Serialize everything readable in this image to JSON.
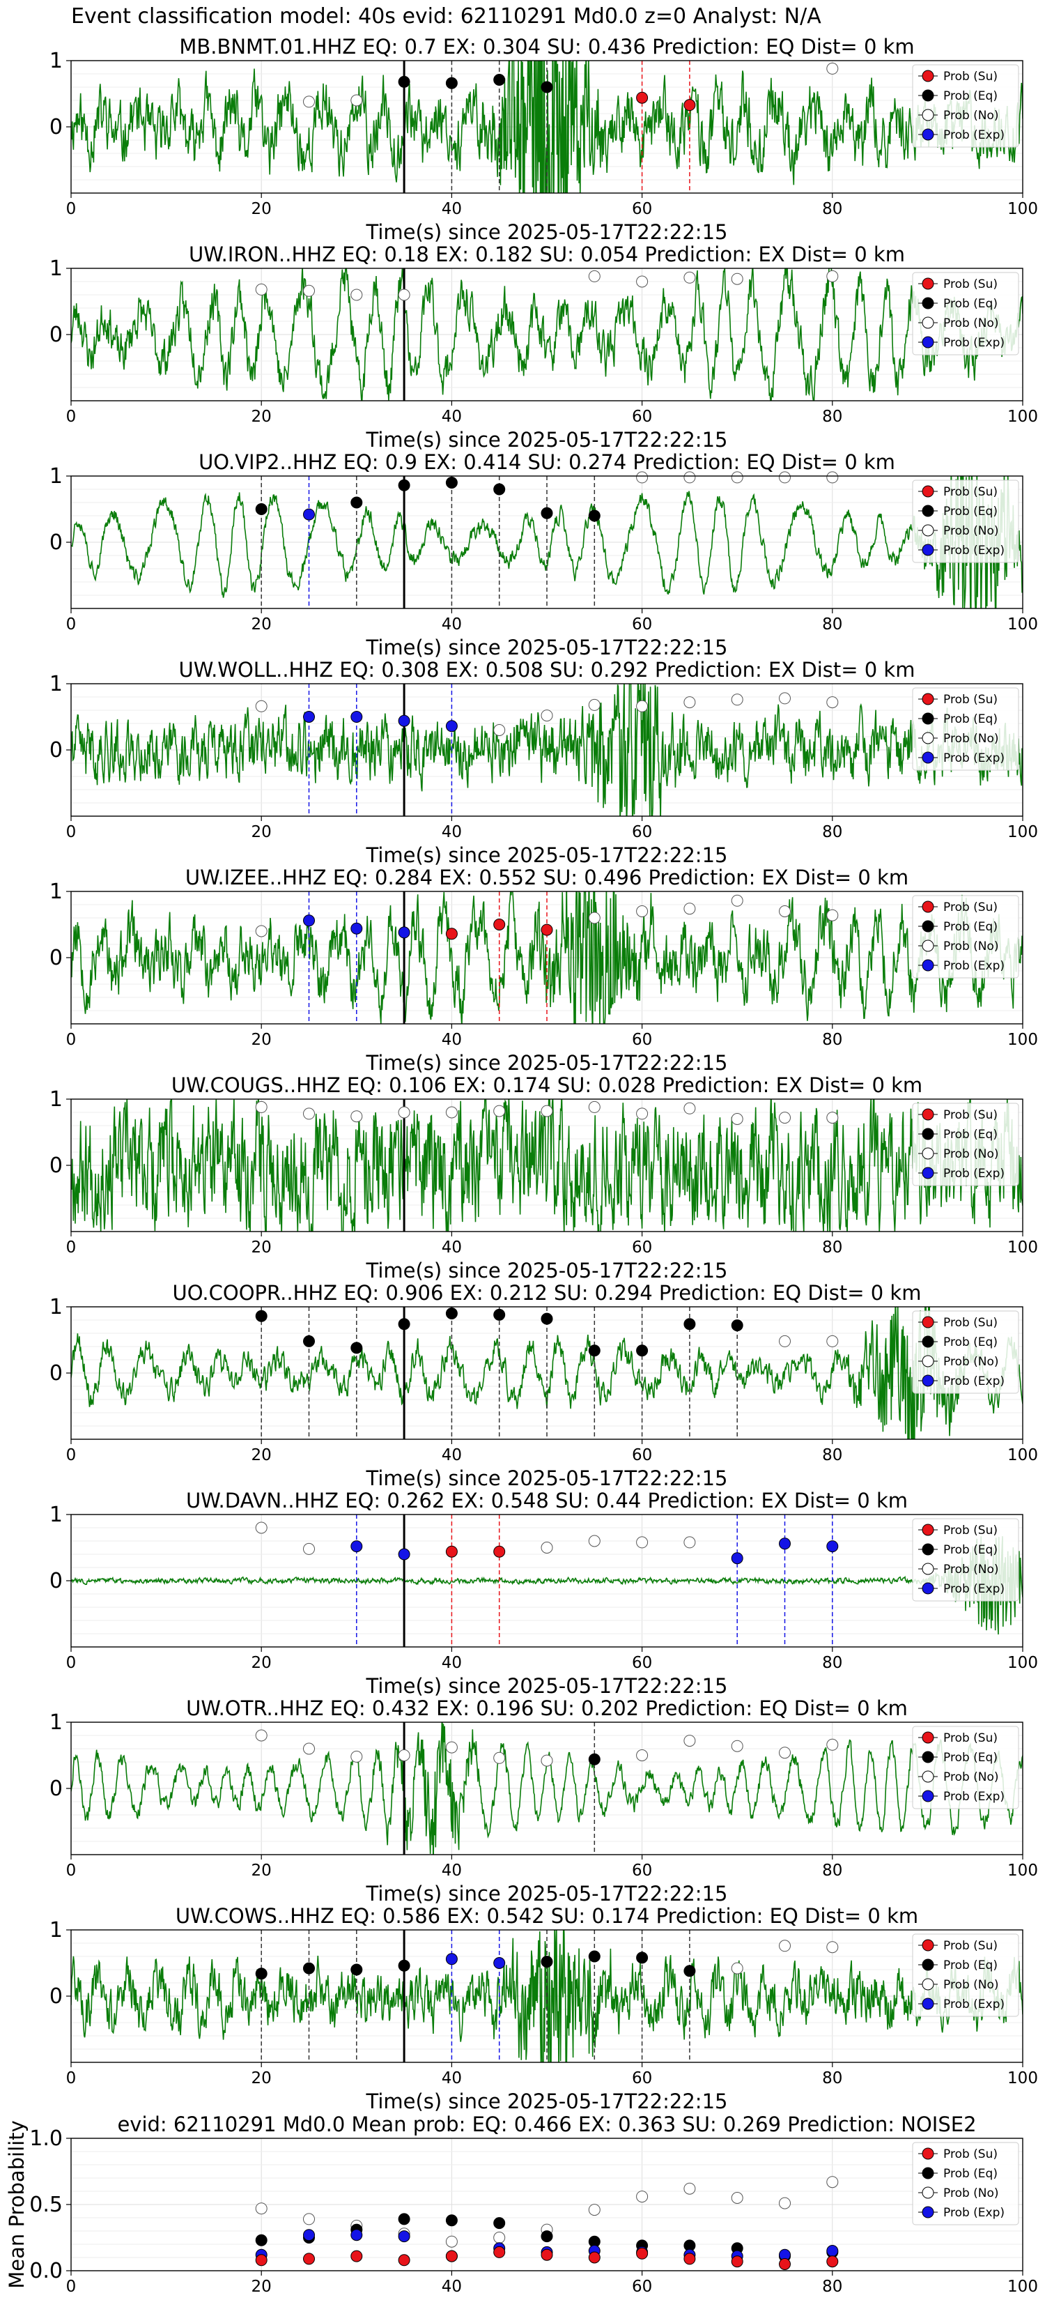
{
  "suptitle": "Event classification model: 40s evid: 62110291 Md0.0 z=0 Analyst: N/A",
  "legend_labels": [
    "Prob (Su)",
    "Prob (Eq)",
    "Prob (No)",
    "Prob (Exp)"
  ],
  "colors": {
    "su": "#e8141a",
    "eq": "#000000",
    "no": "#ffffff",
    "exp": "#1414e6",
    "trace": "#0a7d0a"
  },
  "chart_data": [
    {
      "type": "line",
      "title": "MB.BNMT.01.HHZ   EQ: 0.7  EX: 0.304  SU: 0.436   Prediction: EQ    Dist= 0 km",
      "xlabel": "Time(s) since 2025-05-17T22:22:15",
      "xlim": [
        0,
        100
      ],
      "ylim": [
        -1,
        1
      ],
      "xticks": [
        "0",
        "20",
        "40",
        "60",
        "80",
        "100"
      ],
      "yticks": [
        "1",
        "0"
      ],
      "grid": true,
      "legend": "upper-right",
      "trace": {
        "amplitude": 0.35,
        "period": 3.2,
        "noise": 0.35,
        "burst_at": 50,
        "burst_amp": 2.2,
        "seed": 11
      },
      "reference_line": 35,
      "markers": [
        {
          "class": "no",
          "x": [
            25,
            30,
            80
          ],
          "y": [
            0.38,
            0.4,
            0.88
          ]
        },
        {
          "class": "eq",
          "x": [
            35,
            40,
            45,
            50
          ],
          "y": [
            0.68,
            0.66,
            0.71,
            0.6
          ]
        },
        {
          "class": "su",
          "x": [
            60,
            65
          ],
          "y": [
            0.44,
            0.33
          ]
        }
      ],
      "vlines": [
        {
          "class": "eq",
          "x": [
            40,
            45,
            50
          ]
        },
        {
          "class": "su",
          "x": [
            60,
            65
          ]
        }
      ]
    },
    {
      "type": "line",
      "title": "UW.IRON..HHZ   EQ: 0.18  EX: 0.182  SU: 0.054   Prediction: EX    Dist= 0 km",
      "xlabel": "Time(s) since 2025-05-17T22:22:15",
      "xlim": [
        0,
        100
      ],
      "ylim": [
        -1,
        1
      ],
      "xticks": [
        "0",
        "20",
        "40",
        "60",
        "80",
        "100"
      ],
      "yticks": [
        "1",
        "0"
      ],
      "grid": true,
      "legend": "upper-right",
      "trace": {
        "amplitude": 0.75,
        "period": 3.4,
        "noise": 0.25,
        "seed": 23
      },
      "reference_line": 35,
      "markers": [
        {
          "class": "no",
          "x": [
            20,
            25,
            30,
            35,
            55,
            60,
            65,
            70,
            80
          ],
          "y": [
            0.68,
            0.66,
            0.6,
            0.6,
            0.88,
            0.8,
            0.86,
            0.84,
            0.88
          ]
        }
      ],
      "vlines": []
    },
    {
      "type": "line",
      "title": "UO.VIP2..HHZ   EQ: 0.9  EX: 0.414  SU: 0.274   Prediction: EQ    Dist= 0 km",
      "xlabel": "Time(s) since 2025-05-17T22:22:15",
      "xlim": [
        0,
        100
      ],
      "ylim": [
        -1,
        1
      ],
      "xticks": [
        "0",
        "20",
        "40",
        "60",
        "80",
        "100"
      ],
      "yticks": [
        "1",
        "0"
      ],
      "grid": true,
      "legend": "upper-right",
      "trace": {
        "amplitude": 0.65,
        "period": 4.2,
        "noise": 0.1,
        "burst_at": 95,
        "burst_amp": 1.4,
        "seed": 37
      },
      "reference_line": 35,
      "markers": [
        {
          "class": "eq",
          "x": [
            20,
            30,
            35,
            40,
            45,
            50,
            55
          ],
          "y": [
            0.5,
            0.6,
            0.86,
            0.9,
            0.8,
            0.44,
            0.4
          ]
        },
        {
          "class": "exp",
          "x": [
            25
          ],
          "y": [
            0.42
          ]
        },
        {
          "class": "no",
          "x": [
            60,
            65,
            70,
            75,
            80
          ],
          "y": [
            0.98,
            0.98,
            0.98,
            0.98,
            0.98
          ]
        }
      ],
      "vlines": [
        {
          "class": "eq",
          "x": [
            20,
            30,
            40,
            45,
            50,
            55
          ]
        },
        {
          "class": "exp",
          "x": [
            25
          ]
        }
      ]
    },
    {
      "type": "line",
      "title": "UW.WOLL..HHZ   EQ: 0.308  EX: 0.508  SU: 0.292   Prediction: EX    Dist= 0 km",
      "xlabel": "Time(s) since 2025-05-17T22:22:15",
      "xlim": [
        0,
        100
      ],
      "ylim": [
        -1,
        1
      ],
      "xticks": [
        "0",
        "20",
        "40",
        "60",
        "80",
        "100"
      ],
      "yticks": [
        "1",
        "0"
      ],
      "grid": true,
      "legend": "upper-right",
      "trace": {
        "amplitude": 0.12,
        "period": 2.0,
        "noise": 0.35,
        "burst_at": 59,
        "burst_amp": 1.1,
        "seed": 41
      },
      "reference_line": 35,
      "markers": [
        {
          "class": "no",
          "x": [
            20,
            45,
            50,
            55,
            60,
            65,
            70,
            75,
            80
          ],
          "y": [
            0.66,
            0.3,
            0.52,
            0.68,
            0.66,
            0.72,
            0.76,
            0.78,
            0.72
          ]
        },
        {
          "class": "exp",
          "x": [
            25,
            30,
            35,
            40
          ],
          "y": [
            0.5,
            0.5,
            0.44,
            0.36
          ]
        }
      ],
      "vlines": [
        {
          "class": "exp",
          "x": [
            25,
            30,
            40
          ]
        }
      ]
    },
    {
      "type": "line",
      "title": "UW.IZEE..HHZ   EQ: 0.284  EX: 0.552  SU: 0.496   Prediction: EX    Dist= 0 km",
      "xlabel": "Time(s) since 2025-05-17T22:22:15",
      "xlim": [
        0,
        100
      ],
      "ylim": [
        -1,
        1
      ],
      "xticks": [
        "0",
        "20",
        "40",
        "60",
        "80",
        "100"
      ],
      "yticks": [
        "1",
        "0"
      ],
      "grid": true,
      "legend": "upper-right",
      "trace": {
        "amplitude": 0.5,
        "period": 3.0,
        "noise": 0.35,
        "burst_at": 55,
        "burst_amp": 1.5,
        "seed": 53
      },
      "reference_line": 35,
      "markers": [
        {
          "class": "no",
          "x": [
            20,
            55,
            60,
            65,
            70,
            75,
            80
          ],
          "y": [
            0.4,
            0.6,
            0.7,
            0.74,
            0.86,
            0.7,
            0.64
          ]
        },
        {
          "class": "exp",
          "x": [
            25,
            30,
            35
          ],
          "y": [
            0.56,
            0.44,
            0.38
          ]
        },
        {
          "class": "su",
          "x": [
            40,
            45,
            50
          ],
          "y": [
            0.36,
            0.5,
            0.42
          ]
        }
      ],
      "vlines": [
        {
          "class": "exp",
          "x": [
            25,
            30
          ]
        },
        {
          "class": "su",
          "x": [
            45,
            50
          ]
        }
      ]
    },
    {
      "type": "line",
      "title": "UW.COUGS..HHZ   EQ: 0.106  EX: 0.174  SU: 0.028   Prediction: EX    Dist= 0 km",
      "xlabel": "Time(s) since 2025-05-17T22:22:15",
      "xlim": [
        0,
        100
      ],
      "ylim": [
        -1,
        1
      ],
      "xticks": [
        "0",
        "20",
        "40",
        "60",
        "80",
        "100"
      ],
      "yticks": [
        "1",
        "0"
      ],
      "grid": true,
      "legend": "upper-right",
      "trace": {
        "amplitude": 0.15,
        "period": 1.5,
        "noise": 0.7,
        "seed": 67
      },
      "reference_line": 35,
      "markers": [
        {
          "class": "no",
          "x": [
            20,
            25,
            30,
            35,
            40,
            45,
            50,
            55,
            60,
            65,
            70,
            75,
            80
          ],
          "y": [
            0.88,
            0.78,
            0.74,
            0.8,
            0.8,
            0.82,
            0.82,
            0.88,
            0.78,
            0.86,
            0.7,
            0.72,
            0.72
          ]
        }
      ],
      "vlines": []
    },
    {
      "type": "line",
      "title": "UO.COOPR..HHZ   EQ: 0.906  EX: 0.212  SU: 0.294   Prediction: EQ    Dist= 0 km",
      "xlabel": "Time(s) since 2025-05-17T22:22:15",
      "xlim": [
        0,
        100
      ],
      "ylim": [
        -1,
        1
      ],
      "xticks": [
        "0",
        "20",
        "40",
        "60",
        "80",
        "100"
      ],
      "yticks": [
        "1",
        "0"
      ],
      "grid": true,
      "legend": "upper-right",
      "trace": {
        "amplitude": 0.4,
        "period": 3.6,
        "noise": 0.15,
        "burst_at": 88,
        "burst_amp": 1.2,
        "seed": 71
      },
      "reference_line": 35,
      "markers": [
        {
          "class": "eq",
          "x": [
            20,
            25,
            30,
            35,
            40,
            45,
            50,
            55,
            60,
            65,
            70
          ],
          "y": [
            0.86,
            0.48,
            0.38,
            0.74,
            0.9,
            0.88,
            0.82,
            0.34,
            0.34,
            0.74,
            0.72
          ]
        },
        {
          "class": "no",
          "x": [
            75,
            80
          ],
          "y": [
            0.48,
            0.48
          ]
        }
      ],
      "vlines": [
        {
          "class": "eq",
          "x": [
            20,
            25,
            30,
            40,
            45,
            50,
            55,
            60,
            65,
            70
          ]
        }
      ]
    },
    {
      "type": "line",
      "title": "UW.DAVN..HHZ   EQ: 0.262  EX: 0.548  SU: 0.44   Prediction: EX    Dist= 0 km",
      "xlabel": "Time(s) since 2025-05-17T22:22:15",
      "xlim": [
        0,
        100
      ],
      "ylim": [
        -1,
        1
      ],
      "xticks": [
        "0",
        "20",
        "40",
        "60",
        "80",
        "100"
      ],
      "yticks": [
        "1",
        "0"
      ],
      "grid": true,
      "legend": "upper-right",
      "trace": {
        "amplitude": 0.0,
        "period": 2.0,
        "noise": 0.03,
        "burst_at": 97,
        "burst_amp": 0.8,
        "seed": 83
      },
      "reference_line": 35,
      "markers": [
        {
          "class": "no",
          "x": [
            20,
            25,
            50,
            55,
            60,
            65
          ],
          "y": [
            0.8,
            0.48,
            0.5,
            0.6,
            0.58,
            0.58
          ]
        },
        {
          "class": "exp",
          "x": [
            30,
            35,
            70,
            75,
            80
          ],
          "y": [
            0.52,
            0.4,
            0.34,
            0.56,
            0.52
          ]
        },
        {
          "class": "su",
          "x": [
            40,
            45
          ],
          "y": [
            0.44,
            0.44
          ]
        }
      ],
      "vlines": [
        {
          "class": "exp",
          "x": [
            30,
            70,
            75,
            80
          ]
        },
        {
          "class": "su",
          "x": [
            40,
            45
          ]
        }
      ]
    },
    {
      "type": "line",
      "title": "UW.OTR..HHZ   EQ: 0.432  EX: 0.196  SU: 0.202   Prediction: EQ    Dist= 0 km",
      "xlabel": "Time(s) since 2025-05-17T22:22:15",
      "xlim": [
        0,
        100
      ],
      "ylim": [
        -1,
        1
      ],
      "xticks": [
        "0",
        "20",
        "40",
        "60",
        "80",
        "100"
      ],
      "yticks": [
        "1",
        "0"
      ],
      "grid": true,
      "legend": "upper-right",
      "trace": {
        "amplitude": 0.6,
        "period": 2.6,
        "noise": 0.1,
        "burst_at": 38,
        "burst_amp": 0.6,
        "seed": 97
      },
      "reference_line": 35,
      "markers": [
        {
          "class": "no",
          "x": [
            20,
            25,
            30,
            35,
            40,
            45,
            50,
            60,
            65,
            70,
            75,
            80
          ],
          "y": [
            0.8,
            0.6,
            0.48,
            0.5,
            0.62,
            0.46,
            0.42,
            0.5,
            0.72,
            0.64,
            0.54,
            0.66
          ]
        },
        {
          "class": "eq",
          "x": [
            55
          ],
          "y": [
            0.44
          ]
        }
      ],
      "vlines": [
        {
          "class": "eq",
          "x": [
            55
          ]
        }
      ]
    },
    {
      "type": "line",
      "title": "UW.COWS..HHZ   EQ: 0.586  EX: 0.542  SU: 0.174   Prediction: EQ    Dist= 0 km",
      "xlabel": "Time(s) since 2025-05-17T22:22:15",
      "xlim": [
        0,
        100
      ],
      "ylim": [
        -1,
        1
      ],
      "xticks": [
        "0",
        "20",
        "40",
        "60",
        "80",
        "100"
      ],
      "yticks": [
        "1",
        "0"
      ],
      "grid": true,
      "legend": "upper-right",
      "trace": {
        "amplitude": 0.3,
        "period": 2.8,
        "noise": 0.3,
        "burst_at": 51,
        "burst_amp": 1.2,
        "seed": 101
      },
      "reference_line": 35,
      "markers": [
        {
          "class": "eq",
          "x": [
            20,
            25,
            30,
            35,
            50,
            55,
            60,
            65
          ],
          "y": [
            0.34,
            0.42,
            0.4,
            0.46,
            0.52,
            0.6,
            0.58,
            0.38
          ]
        },
        {
          "class": "exp",
          "x": [
            40,
            45
          ],
          "y": [
            0.56,
            0.5
          ]
        },
        {
          "class": "no",
          "x": [
            70,
            75,
            80
          ],
          "y": [
            0.42,
            0.76,
            0.74
          ]
        }
      ],
      "vlines": [
        {
          "class": "eq",
          "x": [
            20,
            25,
            30,
            50,
            55,
            60,
            65
          ]
        },
        {
          "class": "exp",
          "x": [
            40,
            45
          ]
        }
      ]
    },
    {
      "type": "scatter",
      "title": "evid: 62110291  Md0.0   Mean prob:   EQ: 0.466  EX: 0.363  SU: 0.269   Prediction: NOISE2",
      "xlabel": "",
      "ylabel": "Mean Probability",
      "xlim": [
        0,
        100
      ],
      "ylim": [
        0,
        1
      ],
      "xticks": [
        "0",
        "20",
        "40",
        "60",
        "80",
        "100"
      ],
      "yticks": [
        "0.0",
        "0.5",
        "1.0"
      ],
      "grid": true,
      "legend": "upper-right",
      "x": [
        20,
        25,
        30,
        35,
        40,
        45,
        50,
        55,
        60,
        65,
        70,
        75,
        80
      ],
      "series": [
        {
          "name": "Prob (No)",
          "class": "no",
          "values": [
            0.47,
            0.39,
            0.34,
            0.28,
            0.22,
            0.25,
            0.31,
            0.46,
            0.56,
            0.62,
            0.55,
            0.51,
            0.67
          ]
        },
        {
          "name": "Prob (Eq)",
          "class": "eq",
          "values": [
            0.23,
            0.25,
            0.31,
            0.39,
            0.38,
            0.36,
            0.26,
            0.22,
            0.19,
            0.19,
            0.17,
            0.11,
            0.14
          ]
        },
        {
          "name": "Prob (Exp)",
          "class": "exp",
          "values": [
            0.12,
            0.27,
            0.27,
            0.26,
            0.11,
            0.17,
            0.14,
            0.15,
            0.14,
            0.12,
            0.11,
            0.12,
            0.15
          ]
        },
        {
          "name": "Prob (Su)",
          "class": "su",
          "values": [
            0.08,
            0.09,
            0.11,
            0.08,
            0.11,
            0.14,
            0.12,
            0.1,
            0.13,
            0.09,
            0.07,
            0.05,
            0.07
          ]
        }
      ]
    }
  ]
}
